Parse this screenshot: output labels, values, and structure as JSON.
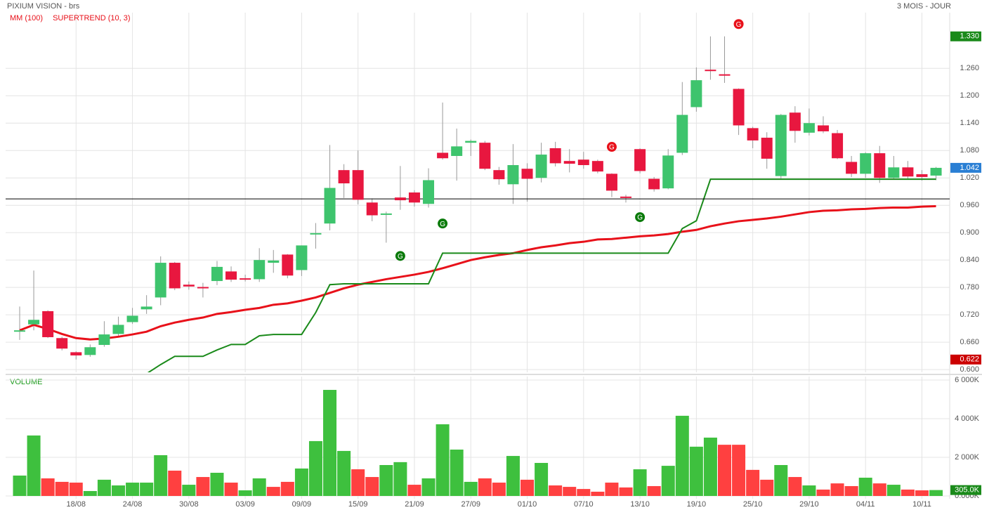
{
  "chart_data": [
    {
      "type": "candlestick",
      "title": "PIXIUM VISION - brs",
      "subtitle": "3 MOIS - JOUR",
      "legend_color": "#e8111a",
      "up_color": "#3ec46d",
      "down_color": "#e8173f",
      "open": [
        0.686,
        0.699,
        0.728,
        0.669,
        0.638,
        0.632,
        0.654,
        0.678,
        0.704,
        0.732,
        0.758,
        0.834,
        0.786,
        0.781,
        0.794,
        0.815,
        0.8,
        0.798,
        0.834,
        0.852,
        0.818,
        0.897,
        0.92,
        1.037,
        1.037,
        0.966,
        0.94,
        0.977,
        0.988,
        0.963,
        1.075,
        1.068,
        1.097,
        1.097,
        1.037,
        1.006,
        1.04,
        1.02,
        1.085,
        1.057,
        1.06,
        1.057,
        1.029,
        0.979,
        1.083,
        1.018,
        0.997,
        1.075,
        1.175,
        1.257,
        1.247,
        1.215,
        1.129,
        1.108,
        1.024,
        1.163,
        1.119,
        1.135,
        1.118,
        1.055,
        1.029,
        1.074,
        1.02,
        1.043,
        1.028,
        1.025
      ],
      "high": [
        0.738,
        0.817,
        0.73,
        0.672,
        0.64,
        0.655,
        0.706,
        0.716,
        0.735,
        0.763,
        0.848,
        0.836,
        0.793,
        0.79,
        0.838,
        0.826,
        0.808,
        0.866,
        0.862,
        0.853,
        0.872,
        0.921,
        1.092,
        1.05,
        1.08,
        0.975,
        0.946,
        1.046,
        0.993,
        1.041,
        1.185,
        1.128,
        1.104,
        1.101,
        1.044,
        1.094,
        1.052,
        1.097,
        1.099,
        1.083,
        1.077,
        1.06,
        1.03,
        0.983,
        1.085,
        1.022,
        1.083,
        1.23,
        1.262,
        1.33,
        1.33,
        1.216,
        1.132,
        1.12,
        1.16,
        1.177,
        1.172,
        1.155,
        1.125,
        1.068,
        1.076,
        1.09,
        1.068,
        1.057,
        1.037,
        1.044
      ],
      "low": [
        0.665,
        0.686,
        0.669,
        0.642,
        0.622,
        0.628,
        0.65,
        0.672,
        0.7,
        0.722,
        0.741,
        0.774,
        0.775,
        0.758,
        0.785,
        0.792,
        0.793,
        0.792,
        0.812,
        0.8,
        0.805,
        0.865,
        0.905,
        0.976,
        0.962,
        0.925,
        0.878,
        0.95,
        0.957,
        0.955,
        1.06,
        1.014,
        1.068,
        1.037,
        1.005,
        0.963,
        0.968,
        1.01,
        1.045,
        1.032,
        1.04,
        1.03,
        0.978,
        0.966,
        1.03,
        0.99,
        0.995,
        1.07,
        1.165,
        1.235,
        1.228,
        1.114,
        1.085,
        1.04,
        1.017,
        1.097,
        1.113,
        1.118,
        1.061,
        1.022,
        1.02,
        1.009,
        1.017,
        1.018,
        1.014,
        1.015
      ],
      "close": [
        0.686,
        0.709,
        0.671,
        0.646,
        0.631,
        0.649,
        0.677,
        0.698,
        0.718,
        0.738,
        0.834,
        0.778,
        0.782,
        0.779,
        0.825,
        0.797,
        0.797,
        0.84,
        0.839,
        0.806,
        0.872,
        0.899,
        0.998,
        1.008,
        0.972,
        0.938,
        0.942,
        0.971,
        0.966,
        1.015,
        1.063,
        1.089,
        1.101,
        1.04,
        1.017,
        1.048,
        1.018,
        1.071,
        1.052,
        1.051,
        1.048,
        1.034,
        0.992,
        0.978,
        1.035,
        0.995,
        1.069,
        1.158,
        1.234,
        1.254,
        1.246,
        1.135,
        1.102,
        1.062,
        1.158,
        1.123,
        1.14,
        1.122,
        1.063,
        1.029,
        1.074,
        1.02,
        1.043,
        1.023,
        1.022,
        1.042
      ],
      "series": [
        {
          "name": "MM (100)",
          "color": "#e8111a",
          "values": [
            0.686,
            0.698,
            0.689,
            0.678,
            0.669,
            0.666,
            0.668,
            0.672,
            0.677,
            0.683,
            0.695,
            0.703,
            0.709,
            0.714,
            0.722,
            0.726,
            0.731,
            0.735,
            0.742,
            0.745,
            0.751,
            0.758,
            0.768,
            0.778,
            0.786,
            0.792,
            0.798,
            0.803,
            0.808,
            0.814,
            0.822,
            0.831,
            0.84,
            0.846,
            0.851,
            0.855,
            0.862,
            0.868,
            0.872,
            0.877,
            0.88,
            0.885,
            0.886,
            0.889,
            0.892,
            0.894,
            0.897,
            0.902,
            0.906,
            0.914,
            0.92,
            0.925,
            0.928,
            0.931,
            0.935,
            0.94,
            0.945,
            0.948,
            0.949,
            0.951,
            0.952,
            0.954,
            0.955,
            0.955,
            0.957,
            0.958
          ]
        },
        {
          "name": "SUPERTREND (10, 3)",
          "color": "#1a8a1a",
          "values": [
            null,
            null,
            null,
            null,
            null,
            null,
            null,
            null,
            null,
            0.591,
            0.611,
            0.629,
            0.629,
            0.629,
            0.643,
            0.655,
            0.655,
            0.674,
            0.677,
            0.677,
            0.677,
            0.725,
            0.786,
            0.788,
            0.788,
            0.788,
            0.788,
            0.788,
            0.788,
            0.788,
            0.855,
            0.855,
            0.855,
            0.855,
            0.855,
            0.855,
            0.855,
            0.855,
            0.855,
            0.855,
            0.855,
            0.855,
            0.855,
            0.855,
            0.855,
            0.855,
            0.855,
            0.909,
            0.926,
            1.017,
            1.017,
            1.017,
            1.017,
            1.017,
            1.017,
            1.017,
            1.017,
            1.017,
            1.017,
            1.017,
            1.017,
            1.017,
            1.017,
            1.017,
            1.017,
            1.017
          ]
        }
      ],
      "signals": [
        {
          "index": 51,
          "value": 1.357,
          "label": "G",
          "color": "#e8111a"
        },
        {
          "index": 42,
          "value": 1.088,
          "label": "G",
          "color": "#e8111a"
        },
        {
          "index": 30,
          "value": 0.92,
          "label": "G",
          "color": "#0a7a0a"
        },
        {
          "index": 27,
          "value": 0.849,
          "label": "G",
          "color": "#0a7a0a"
        },
        {
          "index": 44,
          "value": 0.934,
          "label": "G",
          "color": "#0a7a0a"
        }
      ],
      "reference_line": 0.974,
      "tags": [
        {
          "value": 1.33,
          "label": "1.330",
          "color": "#1a8a1a"
        },
        {
          "value": 1.042,
          "label": "1.042",
          "color": "#2a7fd4"
        },
        {
          "value": 0.622,
          "label": "0.622",
          "color": "#cc0000"
        }
      ],
      "ylim": [
        0.594,
        1.382
      ],
      "yticks": [
        {
          "value": 0.6,
          "label": "0.600"
        },
        {
          "value": 0.66,
          "label": "0.660"
        },
        {
          "value": 0.72,
          "label": "0.720"
        },
        {
          "value": 0.78,
          "label": "0.780"
        },
        {
          "value": 0.84,
          "label": "0.840"
        },
        {
          "value": 0.9,
          "label": "0.900"
        },
        {
          "value": 0.96,
          "label": "0.960"
        },
        {
          "value": 1.02,
          "label": "1.020"
        },
        {
          "value": 1.08,
          "label": "1.080"
        },
        {
          "value": 1.14,
          "label": "1.140"
        },
        {
          "value": 1.2,
          "label": "1.200"
        },
        {
          "value": 1.26,
          "label": "1.260"
        }
      ],
      "grid": true
    },
    {
      "type": "bar",
      "title": "VOLUME",
      "up_color": "#3ec03e",
      "down_color": "#ff4040",
      "categories": [
        null,
        null,
        null,
        null,
        "18/08",
        null,
        null,
        null,
        "24/08",
        null,
        null,
        null,
        "30/08",
        null,
        null,
        null,
        "03/09",
        null,
        null,
        null,
        "09/09",
        null,
        null,
        null,
        "15/09",
        null,
        null,
        null,
        "21/09",
        null,
        null,
        null,
        "27/09",
        null,
        null,
        null,
        "01/10",
        null,
        null,
        null,
        "07/10",
        null,
        null,
        null,
        "13/10",
        null,
        null,
        null,
        "19/10",
        null,
        null,
        null,
        "25/10",
        null,
        null,
        null,
        "29/10",
        null,
        null,
        null,
        "04/11",
        null,
        null,
        null,
        "10/11",
        null
      ],
      "values": [
        1055,
        3130,
        910,
        730,
        690,
        255,
        840,
        545,
        690,
        690,
        2110,
        1310,
        580,
        980,
        1200,
        690,
        290,
        910,
        470,
        730,
        1420,
        2840,
        5490,
        2330,
        1380,
        980,
        1600,
        1750,
        580,
        910,
        3710,
        2400,
        730,
        910,
        690,
        2070,
        840,
        1710,
        545,
        470,
        360,
        220,
        690,
        440,
        1380,
        510,
        1560,
        4150,
        2550,
        3020,
        2650,
        2650,
        1350,
        840,
        1600,
        980,
        545,
        330,
        650,
        510,
        945,
        650,
        580,
        330,
        290,
        305
      ],
      "tags": [
        {
          "value": 305,
          "label": "305.0K",
          "color": "#1a8a1a"
        }
      ],
      "ylim": [
        0,
        6000
      ],
      "yticks": [
        {
          "value": 0,
          "label": "0.000K"
        },
        {
          "value": 2000,
          "label": "2 000K"
        },
        {
          "value": 4000,
          "label": "4 000K"
        },
        {
          "value": 6000,
          "label": "6 000K"
        }
      ],
      "grid": true
    }
  ]
}
